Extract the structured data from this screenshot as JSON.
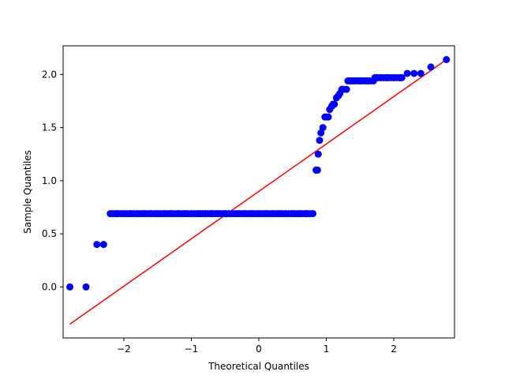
{
  "chart_data": {
    "type": "scatter",
    "title": "",
    "xlabel": "Theoretical Quantiles",
    "ylabel": "Sample Quantiles",
    "xlim": [
      -2.9,
      2.9
    ],
    "ylim": [
      -0.48,
      2.27
    ],
    "xticks": [
      -2,
      -1,
      0,
      1,
      2
    ],
    "yticks": [
      0.0,
      0.5,
      1.0,
      1.5,
      2.0
    ],
    "xtick_labels": [
      "−2",
      "−1",
      "0",
      "1",
      "2"
    ],
    "ytick_labels": [
      "0.0",
      "0.5",
      "1.0",
      "1.5",
      "2.0"
    ],
    "grid": false,
    "legend": "none",
    "colors": {
      "points": "#0000ff",
      "reference_line": "#ff0000"
    },
    "series": [
      {
        "kind": "points",
        "x": [
          -2.8,
          -2.56,
          -2.4,
          -2.3,
          -2.2,
          -2.1,
          -2.0,
          -1.9,
          -1.8,
          -1.7,
          -1.6,
          -1.5,
          -1.4,
          -1.3,
          -1.2,
          -1.1,
          -1.0,
          -0.9,
          -0.8,
          -0.7,
          -0.6,
          -0.5,
          -0.4,
          -0.3,
          -0.2,
          -0.1,
          0.0,
          0.1,
          0.2,
          0.3,
          0.4,
          0.5,
          0.6,
          0.7,
          0.8,
          0.85,
          0.85,
          0.87,
          0.88,
          0.9,
          0.92,
          0.95,
          0.98,
          1.0,
          1.03,
          1.05,
          1.08,
          1.1,
          1.12,
          1.15,
          1.18,
          1.2,
          1.23,
          1.25,
          1.3,
          1.35,
          1.4,
          1.5,
          1.6,
          1.7,
          1.75,
          1.8,
          1.9,
          2.0,
          2.1,
          2.2,
          2.3,
          2.4,
          2.55,
          2.78
        ],
        "y": [
          0.0,
          0.0,
          0.4,
          0.4,
          0.69,
          0.69,
          0.69,
          0.69,
          0.69,
          0.69,
          0.69,
          0.69,
          0.69,
          0.69,
          0.69,
          0.69,
          0.69,
          0.69,
          0.69,
          0.69,
          0.69,
          0.69,
          0.69,
          0.69,
          0.69,
          0.69,
          0.69,
          0.69,
          0.69,
          0.69,
          0.69,
          0.69,
          0.69,
          0.69,
          0.69,
          1.1,
          1.1,
          1.1,
          1.25,
          1.38,
          1.45,
          1.5,
          1.6,
          1.6,
          1.6,
          1.67,
          1.7,
          1.72,
          1.72,
          1.78,
          1.8,
          1.82,
          1.86,
          1.86,
          1.86,
          1.94,
          1.94,
          1.94,
          1.94,
          1.94,
          1.97,
          1.97,
          1.97,
          1.97,
          1.97,
          2.01,
          2.01,
          2.01,
          2.07,
          2.14
        ]
      },
      {
        "kind": "line",
        "x": [
          -2.8,
          2.78
        ],
        "y": [
          -0.35,
          2.14
        ]
      }
    ]
  }
}
